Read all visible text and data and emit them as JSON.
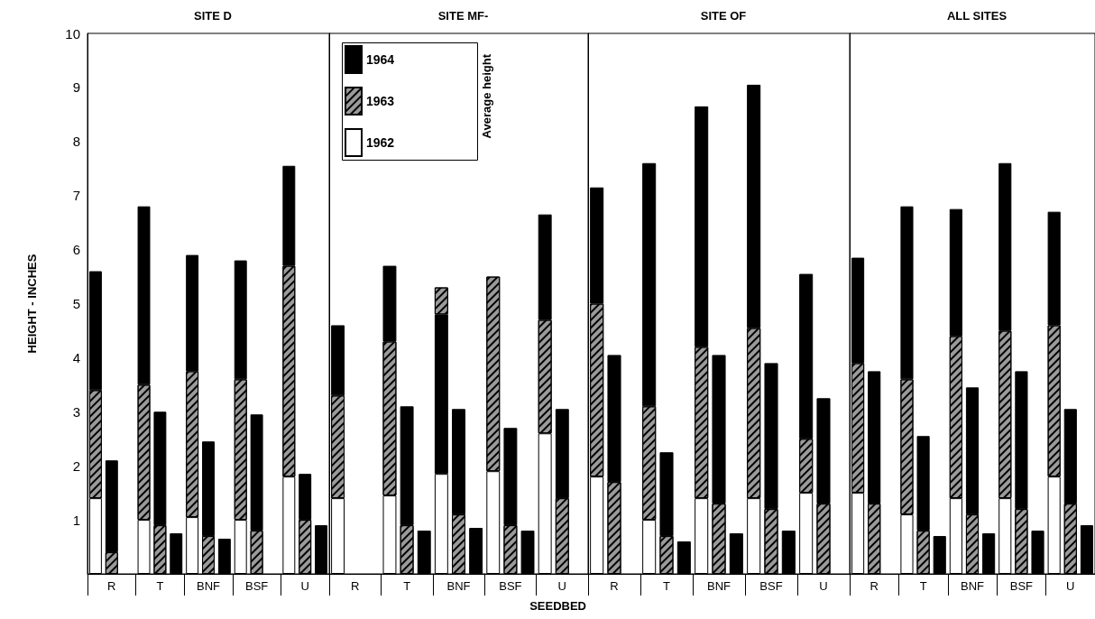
{
  "chart_data": [
    {
      "type": "bar",
      "title": "SITE D",
      "ylabel": "HEIGHT - INCHES",
      "categories": [
        null,
        "R",
        null,
        null,
        "T",
        null,
        null,
        "BNF",
        null,
        null,
        "BSF",
        null,
        null,
        "U",
        null
      ],
      "stacked": true,
      "ylim": [
        0,
        10
      ],
      "yticks": [
        1,
        2,
        3,
        4,
        5,
        6,
        7,
        8,
        9,
        10
      ],
      "grid": false,
      "legend": false,
      "series": [
        {
          "color": "#ffffff",
          "values": [
            1.4,
            null,
            null,
            1.0,
            null,
            null,
            1.05,
            null,
            null,
            1.0,
            null,
            null,
            1.8,
            null,
            null
          ]
        },
        {
          "color": "#9a9a9a",
          "values": [
            2.0,
            0.4,
            null,
            2.5,
            0.9,
            null,
            2.7,
            0.7,
            null,
            2.6,
            0.8,
            null,
            3.9,
            1.0,
            null
          ]
        },
        {
          "color": "#000000",
          "values": [
            2.2,
            1.7,
            null,
            3.3,
            2.1,
            0.75,
            2.15,
            1.75,
            0.65,
            2.2,
            2.15,
            null,
            1.85,
            0.85,
            0.9
          ]
        }
      ]
    },
    {
      "type": "bar",
      "title": "SITE MF-",
      "xlabel": "SEEDBED",
      "legend_title": "Average height",
      "categories": [
        null,
        "R",
        null,
        null,
        "T",
        null,
        null,
        "BNF",
        null,
        null,
        "BSF",
        null,
        null,
        "U",
        null
      ],
      "stacked": true,
      "ylim": [
        0,
        10
      ],
      "yticks": [
        1,
        2,
        3,
        4,
        5,
        6,
        7,
        8,
        9,
        10
      ],
      "tick_labels": "x",
      "grid": false,
      "legend": "top left",
      "series": [
        {
          "name": "1962",
          "color": "#ffffff",
          "values": [
            1.4,
            null,
            null,
            1.45,
            null,
            null,
            1.85,
            null,
            null,
            1.9,
            null,
            null,
            2.6,
            null,
            null
          ]
        },
        {
          "name": "1963",
          "color": "#9a9a9a",
          "values": [
            1.9,
            null,
            null,
            2.85,
            0.9,
            null,
            null,
            1.1,
            null,
            3.6,
            0.9,
            null,
            2.1,
            1.4,
            null
          ]
        },
        {
          "name": "1964",
          "color": "#000000",
          "values": [
            1.3,
            null,
            null,
            1.4,
            2.2,
            0.8,
            2.95,
            1.95,
            0.85,
            null,
            1.8,
            0.8,
            1.95,
            1.65,
            null
          ]
        },
        {
          "color": "#9a9a9a",
          "values": [
            null,
            null,
            null,
            null,
            null,
            null,
            0.5,
            null,
            null,
            null,
            null,
            null,
            null,
            null,
            null
          ]
        }
      ]
    },
    {
      "type": "bar",
      "title": "SITE OF",
      "categories": [
        null,
        "R",
        null,
        null,
        "T",
        null,
        null,
        "BNF",
        null,
        null,
        "BSF",
        null,
        null,
        "U",
        null
      ],
      "stacked": true,
      "ylim": [
        0,
        10
      ],
      "yticks": [
        1,
        2,
        3,
        4,
        5,
        6,
        7,
        8,
        9,
        10
      ],
      "tick_labels": "x",
      "grid": false,
      "legend": false,
      "series": [
        {
          "color": "#ffffff",
          "values": [
            1.8,
            null,
            null,
            1.0,
            null,
            null,
            1.4,
            null,
            null,
            1.4,
            null,
            null,
            1.5,
            null,
            null
          ]
        },
        {
          "color": "#9a9a9a",
          "values": [
            3.2,
            1.7,
            null,
            2.1,
            0.7,
            null,
            2.8,
            1.3,
            null,
            3.15,
            1.2,
            null,
            1.0,
            1.3,
            null
          ]
        },
        {
          "color": "#000000",
          "values": [
            2.15,
            2.35,
            null,
            4.5,
            1.55,
            0.6,
            4.45,
            2.75,
            0.75,
            4.5,
            2.7,
            0.8,
            3.05,
            1.95,
            null
          ]
        }
      ]
    },
    {
      "type": "bar",
      "title": "ALL SITES",
      "categories": [
        null,
        "R",
        null,
        null,
        "T",
        null,
        null,
        "BNF",
        null,
        null,
        "BSF",
        null,
        null,
        "U",
        null
      ],
      "stacked": true,
      "ylim": [
        0,
        10
      ],
      "yticks": [
        1,
        2,
        3,
        4,
        5,
        6,
        7,
        8,
        9,
        10
      ],
      "tick_labels": "x",
      "grid": false,
      "legend": false,
      "series": [
        {
          "color": "#ffffff",
          "values": [
            1.5,
            null,
            null,
            1.1,
            null,
            null,
            1.4,
            null,
            null,
            1.4,
            null,
            null,
            1.8,
            null,
            null
          ]
        },
        {
          "color": "#9a9a9a",
          "values": [
            2.4,
            1.3,
            null,
            2.5,
            0.8,
            null,
            3.0,
            1.1,
            null,
            3.1,
            1.2,
            null,
            2.8,
            1.3,
            null
          ]
        },
        {
          "color": "#000000",
          "values": [
            1.95,
            2.45,
            null,
            3.2,
            1.75,
            0.7,
            2.35,
            2.35,
            0.75,
            3.1,
            2.55,
            0.8,
            2.1,
            1.75,
            0.9
          ]
        }
      ]
    }
  ]
}
